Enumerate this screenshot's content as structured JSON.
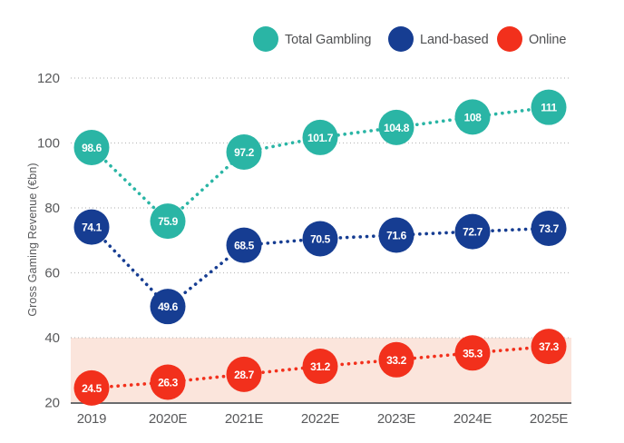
{
  "chart_data": {
    "type": "line",
    "title": "",
    "xlabel": "",
    "ylabel": "Gross Gaming Revenue (€bn)",
    "categories": [
      "2019",
      "2020E",
      "2021E",
      "2022E",
      "2023E",
      "2024E",
      "2025E"
    ],
    "series": [
      {
        "name": "Total Gambling",
        "color": "#2ab5a5",
        "values": [
          98.6,
          75.9,
          97.2,
          101.7,
          104.8,
          108,
          111
        ]
      },
      {
        "name": "Land-based",
        "color": "#163d92",
        "values": [
          74.1,
          49.6,
          68.5,
          70.5,
          71.6,
          72.7,
          73.7
        ]
      },
      {
        "name": "Online",
        "color": "#f2301c",
        "values": [
          24.5,
          26.3,
          28.7,
          31.2,
          33.2,
          35.3,
          37.3
        ]
      }
    ],
    "yticks": [
      20,
      40,
      60,
      80,
      100,
      120
    ],
    "ylim": [
      20,
      120
    ],
    "grid": true,
    "grid_style": "dotted",
    "line_style": "dotted",
    "marker": "labeled-circle",
    "legend_position": "top",
    "highlight_band": {
      "applies_to": "Online",
      "from": 20,
      "to": 40,
      "color": "#fbe5dc"
    }
  },
  "colors": {
    "background": "#ffffff",
    "gridline": "#bdbdbd",
    "axis_line": "#6b6c6e",
    "tick_text": "#58595b",
    "legend_text": "#4f5052",
    "marker_label_text": "#ffffff"
  }
}
